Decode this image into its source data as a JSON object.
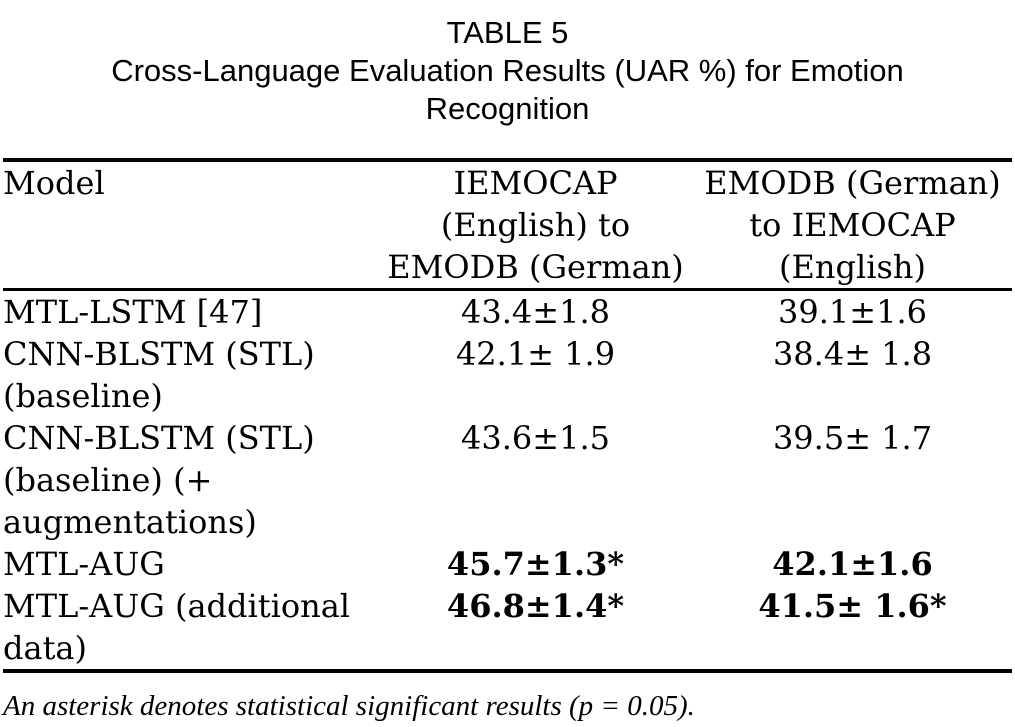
{
  "caption": {
    "label": "TABLE 5",
    "title": "Cross-Language Evaluation Results (UAR %) for Emotion\nRecognition"
  },
  "table": {
    "columns": [
      "Model",
      "IEMOCAP\n(English) to\nEMODB (German)",
      "EMODB (German)\nto IEMOCAP\n(English)"
    ],
    "rows": [
      {
        "model": "MTL-LSTM [47]",
        "iemocap_to_emodb": "43.4±1.8",
        "emodb_to_iemocap": "39.1±1.6",
        "bold": false
      },
      {
        "model": "CNN-BLSTM (STL)\n(baseline)",
        "iemocap_to_emodb": "42.1± 1.9",
        "emodb_to_iemocap": "38.4± 1.8",
        "bold": false
      },
      {
        "model": "CNN-BLSTM (STL)\n(baseline) (+\naugmentations)",
        "iemocap_to_emodb": "43.6±1.5",
        "emodb_to_iemocap": "39.5± 1.7",
        "bold": false
      },
      {
        "model": "MTL-AUG",
        "iemocap_to_emodb": "45.7±1.3*",
        "emodb_to_iemocap": "42.1±1.6",
        "bold": true
      },
      {
        "model": "MTL-AUG (additional\ndata)",
        "iemocap_to_emodb": "46.8±1.4*",
        "emodb_to_iemocap": "41.5± 1.6*",
        "bold": true
      }
    ]
  },
  "footnote": "An asterisk denotes statistical significant results (p = 0.05).",
  "colors": {
    "text": "#000000",
    "background": "#ffffff",
    "rule": "#000000"
  }
}
